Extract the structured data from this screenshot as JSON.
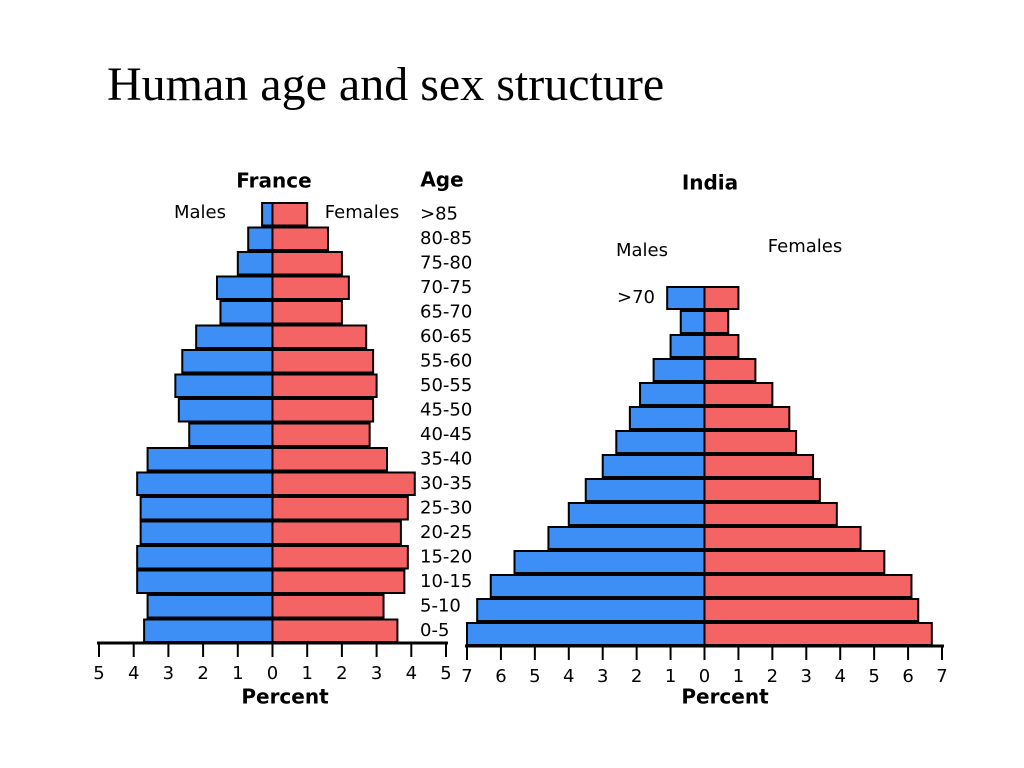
{
  "title": "Human age and sex structure",
  "chart_data": [
    {
      "type": "pyramid",
      "title": "France",
      "ylabel": "Age",
      "xlabel": "Percent",
      "categories": [
        "0-5",
        "5-10",
        "10-15",
        "15-20",
        "20-25",
        "25-30",
        "30-35",
        "35-40",
        "40-45",
        "45-50",
        "50-55",
        "55-60",
        "60-65",
        "65-70",
        "70-75",
        "75-80",
        "80-85",
        ">85"
      ],
      "series": [
        {
          "name": "Males",
          "color": "#3d8ef5",
          "values": [
            -3.7,
            -3.6,
            -3.9,
            -3.9,
            -3.8,
            -3.8,
            -3.9,
            -3.6,
            -2.4,
            -2.7,
            -2.8,
            -2.6,
            -2.2,
            -1.5,
            -1.6,
            -1.0,
            -0.7,
            -0.3
          ]
        },
        {
          "name": "Females",
          "color": "#f56464",
          "values": [
            3.6,
            3.2,
            3.8,
            3.9,
            3.7,
            3.9,
            4.1,
            3.3,
            2.8,
            2.9,
            3.0,
            2.9,
            2.7,
            2.0,
            2.2,
            2.0,
            1.6,
            1.0
          ]
        }
      ],
      "xlim": [
        -5,
        5
      ],
      "xticks": [
        {
          "value": -5,
          "label": "5"
        },
        {
          "value": -4,
          "label": "4"
        },
        {
          "value": -3,
          "label": "3"
        },
        {
          "value": -2,
          "label": "2"
        },
        {
          "value": -1,
          "label": "1"
        },
        0,
        1,
        2,
        3,
        4,
        5
      ]
    },
    {
      "type": "pyramid",
      "title": "India",
      "xlabel": "Percent",
      "categories": [
        null,
        null,
        null,
        null,
        null,
        null,
        null,
        null,
        null,
        null,
        null,
        null,
        null,
        null,
        ">70"
      ],
      "series": [
        {
          "name": "Males",
          "color": "#3d8ef5",
          "values": [
            -7.0,
            -6.7,
            -6.3,
            -5.6,
            -4.6,
            -4.0,
            -3.5,
            -3.0,
            -2.6,
            -2.2,
            -1.9,
            -1.5,
            -1.0,
            -0.7,
            -1.1
          ]
        },
        {
          "name": "Females",
          "color": "#f56464",
          "values": [
            6.7,
            6.3,
            6.1,
            5.3,
            4.6,
            3.9,
            3.4,
            3.2,
            2.7,
            2.5,
            2.0,
            1.5,
            1.0,
            0.7,
            1.0
          ]
        }
      ],
      "xlim": [
        -7,
        7
      ],
      "xticks": [
        {
          "value": -7,
          "label": "7"
        },
        {
          "value": -6,
          "label": "6"
        },
        {
          "value": -5,
          "label": "5"
        },
        {
          "value": -4,
          "label": "4"
        },
        {
          "value": -3,
          "label": "3"
        },
        {
          "value": -2,
          "label": "2"
        },
        {
          "value": -1,
          "label": "1"
        },
        0,
        1,
        2,
        3,
        4,
        5,
        6,
        7
      ]
    }
  ]
}
